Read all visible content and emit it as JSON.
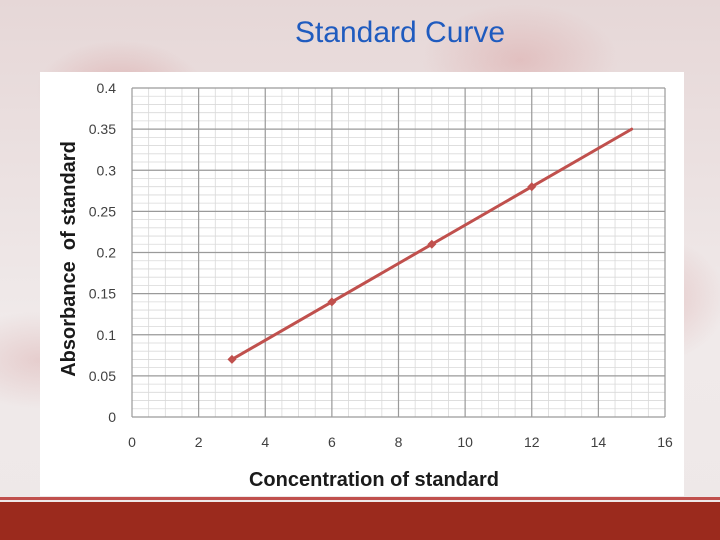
{
  "slide": {
    "title": "Standard Curve",
    "accent_color": "#9b2a1d",
    "title_color": "#1f5bbf"
  },
  "chart_data": {
    "type": "line",
    "xlabel": "Concentration of standard",
    "ylabel": "Absorbance  of standard",
    "xlim": [
      0,
      16
    ],
    "ylim": [
      0,
      0.4
    ],
    "x_ticks": [
      "0",
      "2",
      "4",
      "6",
      "8",
      "10",
      "12",
      "14",
      "16"
    ],
    "y_ticks": [
      "0",
      "0.05",
      "0.1",
      "0.15",
      "0.2",
      "0.25",
      "0.3",
      "0.35",
      "0.4"
    ],
    "grid": true,
    "series": [
      {
        "x": [
          3,
          6,
          9,
          12
        ],
        "y": [
          0.07,
          0.14,
          0.21,
          0.28
        ],
        "color": "#c0504d"
      }
    ],
    "trendline": {
      "x": [
        3,
        15
      ],
      "y": [
        0.07,
        0.35
      ],
      "color": "#c0504d"
    }
  }
}
